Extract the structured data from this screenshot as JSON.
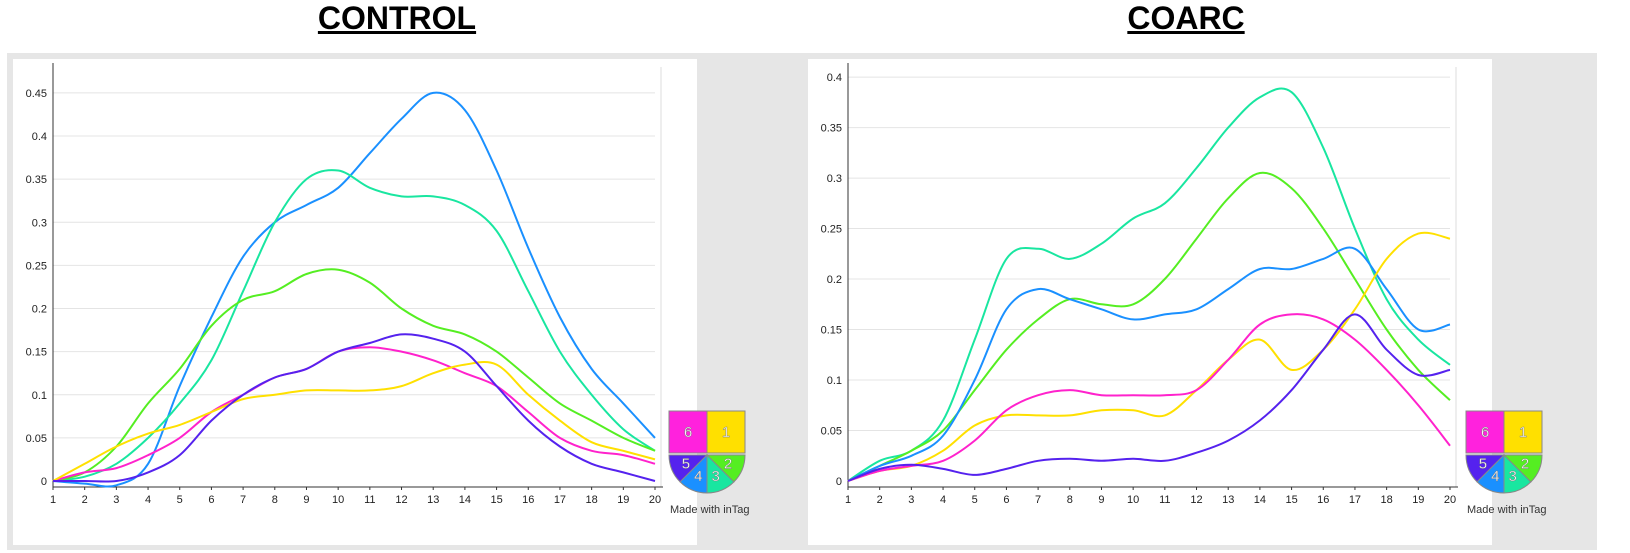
{
  "chart_data": [
    {
      "type": "line",
      "title": "CONTROL",
      "xlabel": "",
      "ylabel": "",
      "xlim": [
        1,
        20
      ],
      "ylim": [
        0,
        0.48
      ],
      "x_ticks": [
        "1",
        "2",
        "3",
        "4",
        "5",
        "6",
        "7",
        "8",
        "9",
        "10",
        "11",
        "12",
        "13",
        "14",
        "15",
        "16",
        "17",
        "18",
        "19",
        "20"
      ],
      "y_ticks": [
        "0",
        "0.05",
        "0.1",
        "0.15",
        "0.2",
        "0.25",
        "0.3",
        "0.35",
        "0.4",
        "0.45"
      ],
      "grid": true,
      "x": [
        1,
        2,
        3,
        4,
        5,
        6,
        7,
        8,
        9,
        10,
        11,
        12,
        13,
        14,
        15,
        16,
        17,
        18,
        19,
        20
      ],
      "series": [
        {
          "color": "#1a90ff",
          "values": [
            0,
            -0.003,
            -0.005,
            0.02,
            0.11,
            0.19,
            0.26,
            0.3,
            0.32,
            0.34,
            0.38,
            0.42,
            0.45,
            0.43,
            0.36,
            0.27,
            0.19,
            0.13,
            0.09,
            0.05
          ]
        },
        {
          "color": "#19e6a0",
          "values": [
            0,
            0.005,
            0.02,
            0.05,
            0.09,
            0.14,
            0.22,
            0.3,
            0.35,
            0.36,
            0.34,
            0.33,
            0.33,
            0.32,
            0.29,
            0.22,
            0.15,
            0.1,
            0.06,
            0.035
          ]
        },
        {
          "color": "#55ee22",
          "values": [
            0,
            0.01,
            0.04,
            0.09,
            0.13,
            0.18,
            0.21,
            0.22,
            0.24,
            0.245,
            0.23,
            0.2,
            0.18,
            0.17,
            0.15,
            0.12,
            0.09,
            0.07,
            0.05,
            0.035
          ]
        },
        {
          "color": "#ff22cc",
          "values": [
            0,
            0.01,
            0.015,
            0.03,
            0.05,
            0.08,
            0.1,
            0.12,
            0.13,
            0.15,
            0.155,
            0.15,
            0.14,
            0.125,
            0.11,
            0.08,
            0.05,
            0.035,
            0.03,
            0.02
          ]
        },
        {
          "color": "#ffe000",
          "values": [
            0,
            0.02,
            0.04,
            0.055,
            0.065,
            0.08,
            0.095,
            0.1,
            0.105,
            0.105,
            0.105,
            0.11,
            0.125,
            0.135,
            0.135,
            0.1,
            0.07,
            0.045,
            0.035,
            0.025
          ]
        },
        {
          "color": "#5522ee",
          "values": [
            0,
            0,
            0,
            0.01,
            0.03,
            0.07,
            0.1,
            0.12,
            0.13,
            0.15,
            0.16,
            0.17,
            0.165,
            0.15,
            0.11,
            0.07,
            0.04,
            0.02,
            0.01,
            0
          ]
        }
      ],
      "legend": {
        "labels": [
          "1",
          "2",
          "3",
          "4",
          "5",
          "6"
        ],
        "caption": "Made with inTag",
        "placement": "bottom-right"
      }
    },
    {
      "type": "line",
      "title": "COARC",
      "xlabel": "",
      "ylabel": "",
      "xlim": [
        1,
        20
      ],
      "ylim": [
        0,
        0.41
      ],
      "x_ticks": [
        "1",
        "2",
        "3",
        "4",
        "5",
        "6",
        "7",
        "8",
        "9",
        "10",
        "11",
        "12",
        "13",
        "14",
        "15",
        "16",
        "17",
        "18",
        "19",
        "20"
      ],
      "y_ticks": [
        "0",
        "0.05",
        "0.1",
        "0.15",
        "0.2",
        "0.25",
        "0.3",
        "0.35",
        "0.4"
      ],
      "grid": true,
      "x": [
        1,
        2,
        3,
        4,
        5,
        6,
        7,
        8,
        9,
        10,
        11,
        12,
        13,
        14,
        15,
        16,
        17,
        18,
        19,
        20
      ],
      "series": [
        {
          "color": "#19e6a0",
          "values": [
            0,
            0.02,
            0.03,
            0.06,
            0.14,
            0.22,
            0.23,
            0.22,
            0.235,
            0.26,
            0.275,
            0.31,
            0.35,
            0.38,
            0.385,
            0.33,
            0.25,
            0.18,
            0.14,
            0.115
          ]
        },
        {
          "color": "#55ee22",
          "values": [
            0,
            0.015,
            0.03,
            0.05,
            0.09,
            0.13,
            0.16,
            0.18,
            0.175,
            0.175,
            0.2,
            0.24,
            0.28,
            0.305,
            0.29,
            0.25,
            0.2,
            0.15,
            0.11,
            0.08
          ]
        },
        {
          "color": "#1a90ff",
          "values": [
            0,
            0.015,
            0.025,
            0.045,
            0.1,
            0.17,
            0.19,
            0.18,
            0.17,
            0.16,
            0.165,
            0.17,
            0.19,
            0.21,
            0.21,
            0.22,
            0.23,
            0.19,
            0.15,
            0.155
          ]
        },
        {
          "color": "#ffe000",
          "values": [
            0,
            0.01,
            0.015,
            0.03,
            0.055,
            0.065,
            0.065,
            0.065,
            0.07,
            0.07,
            0.065,
            0.09,
            0.12,
            0.14,
            0.11,
            0.13,
            0.17,
            0.22,
            0.245,
            0.24
          ]
        },
        {
          "color": "#ff22cc",
          "values": [
            0,
            0.01,
            0.015,
            0.02,
            0.04,
            0.07,
            0.085,
            0.09,
            0.085,
            0.085,
            0.085,
            0.09,
            0.12,
            0.155,
            0.165,
            0.16,
            0.14,
            0.11,
            0.075,
            0.035
          ]
        },
        {
          "color": "#5522ee",
          "values": [
            0,
            0.012,
            0.016,
            0.012,
            0.006,
            0.012,
            0.02,
            0.022,
            0.02,
            0.022,
            0.02,
            0.028,
            0.04,
            0.06,
            0.09,
            0.13,
            0.165,
            0.13,
            0.105,
            0.11
          ]
        }
      ],
      "legend": {
        "labels": [
          "1",
          "2",
          "3",
          "4",
          "5",
          "6"
        ],
        "caption": "Made with inTag",
        "placement": "bottom-right"
      }
    }
  ]
}
